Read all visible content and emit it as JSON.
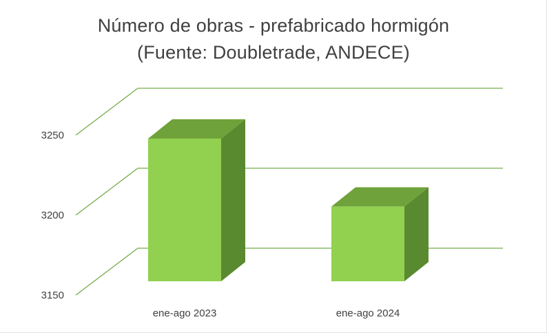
{
  "chart_data": {
    "type": "bar",
    "title": "Número de obras - prefabricado hormigón",
    "subtitle": "(Fuente: Doubletrade, ANDECE)",
    "categories": [
      "ene-ago 2023",
      "ene-ago 2024"
    ],
    "values": [
      3236,
      3195
    ],
    "ylim": [
      3150,
      3250
    ],
    "yticks": [
      "3150",
      "3200",
      "3250"
    ],
    "ytick_values": [
      3150,
      3200,
      3250
    ],
    "grid": true,
    "legend": "none",
    "colors": {
      "front": "#92d050",
      "top": "#6fa23a",
      "side": "#5a8a30",
      "grid": "#70ad47",
      "text": "#404040"
    }
  }
}
